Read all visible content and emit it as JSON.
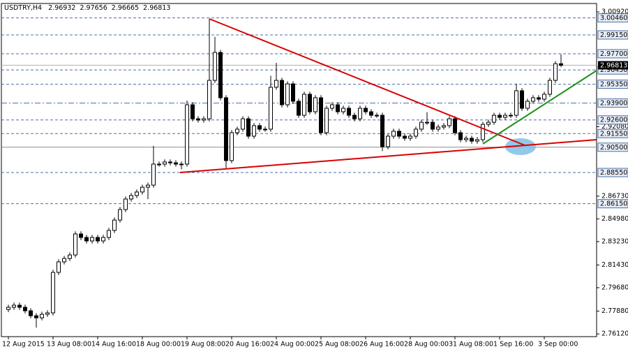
{
  "chart_data": {
    "type": "candlestick",
    "title": "USDTRY,H4",
    "bull_color": "#ffffff",
    "bear_color": "#000000",
    "level_color": "#4a6fa5",
    "categories": [
      "12 Aug 2015",
      null,
      null,
      null,
      null,
      null,
      null,
      null,
      "13 Aug 08:00",
      null,
      null,
      null,
      null,
      null,
      null,
      null,
      "14 Aug 16:00",
      null,
      null,
      null,
      null,
      null,
      null,
      null,
      "18 Aug 00:00",
      null,
      null,
      null,
      null,
      null,
      null,
      null,
      "19 Aug 08:00",
      null,
      null,
      null,
      null,
      null,
      null,
      null,
      "20 Aug 16:00",
      null,
      null,
      null,
      null,
      null,
      null,
      null,
      "24 Aug 00:00",
      null,
      null,
      null,
      null,
      null,
      null,
      null,
      "25 Aug 08:00",
      null,
      null,
      null,
      null,
      null,
      null,
      null,
      "26 Aug 16:00",
      null,
      null,
      null,
      null,
      null,
      null,
      null,
      "28 Aug 00:00",
      null,
      null,
      null,
      null,
      null,
      null,
      null,
      "31 Aug 08:00",
      null,
      null,
      null,
      null,
      null,
      null,
      null,
      "1 Sep 16:00",
      null,
      null,
      null,
      null,
      null,
      null,
      null,
      "3 Sep 00:00",
      null,
      null,
      null
    ],
    "open": [
      2.78,
      2.7817,
      2.7833,
      2.7817,
      2.779,
      2.7752,
      2.7736,
      2.7763,
      2.7774,
      2.8086,
      2.8167,
      2.8193,
      2.822,
      2.8382,
      2.8355,
      2.8328,
      2.8355,
      2.8328,
      2.8355,
      2.8409,
      2.8489,
      2.857,
      2.8651,
      2.8678,
      2.8705,
      2.8742,
      2.8758,
      2.892,
      2.892,
      2.8936,
      2.893,
      2.892,
      2.892,
      2.9377,
      2.9269,
      2.9259,
      2.9269,
      2.9565,
      2.978,
      2.9431,
      2.8947,
      2.9162,
      2.9189,
      2.9269,
      2.9135,
      2.9216,
      2.9189,
      2.9189,
      2.9512,
      2.9565,
      2.9377,
      2.9538,
      2.9404,
      2.9296,
      2.9458,
      2.9323,
      2.9431,
      2.9162,
      2.935,
      2.9377,
      2.9323,
      2.935,
      2.9296,
      2.9269,
      2.935,
      2.9323,
      2.9296,
      2.9296,
      2.9054,
      2.9135,
      2.9173,
      2.9135,
      2.9119,
      2.9135,
      2.9189,
      2.9242,
      2.9242,
      2.9189,
      2.9205,
      2.9216,
      2.9269,
      2.9162,
      2.9108,
      2.9119,
      2.9097,
      2.9108,
      2.9226,
      2.9242,
      2.9296,
      2.928,
      2.9296,
      2.9296,
      2.9485,
      2.935,
      2.9404,
      2.9431,
      2.942,
      2.9458,
      2.9565,
      2.96932
    ],
    "high": [
      2.7837,
      2.7853,
      2.7853,
      2.7837,
      2.781,
      2.7772,
      2.7783,
      2.7794,
      2.8106,
      2.8187,
      2.8213,
      2.824,
      2.8402,
      2.8402,
      2.8375,
      2.8375,
      2.8375,
      2.8375,
      2.8429,
      2.8509,
      2.859,
      2.8671,
      2.8698,
      2.8725,
      2.8762,
      2.8778,
      2.906,
      2.894,
      2.8956,
      2.8956,
      2.895,
      2.894,
      2.941,
      2.9397,
      2.9289,
      2.9289,
      3.004,
      2.99,
      2.98,
      2.9451,
      2.9182,
      2.9209,
      2.9289,
      2.9289,
      2.9236,
      2.9236,
      2.9209,
      2.96,
      2.97,
      2.9585,
      2.9558,
      2.9558,
      2.9424,
      2.9478,
      2.9478,
      2.9451,
      2.9451,
      2.937,
      2.9397,
      2.9397,
      2.937,
      2.937,
      2.9316,
      2.937,
      2.937,
      2.9343,
      2.9316,
      2.9316,
      2.9155,
      2.9193,
      2.9193,
      2.9155,
      2.9155,
      2.9209,
      2.9262,
      2.932,
      2.9262,
      2.9225,
      2.9236,
      2.9289,
      2.9289,
      2.9182,
      2.9139,
      2.9139,
      2.9128,
      2.9246,
      2.9262,
      2.9316,
      2.9316,
      2.9316,
      2.9316,
      2.954,
      2.9505,
      2.9424,
      2.9451,
      2.9451,
      2.9478,
      2.9585,
      2.9713,
      2.97656
    ],
    "low": [
      2.778,
      2.7797,
      2.7797,
      2.777,
      2.7732,
      2.766,
      2.7716,
      2.7743,
      2.7754,
      2.8066,
      2.8147,
      2.8173,
      2.82,
      2.8335,
      2.8308,
      2.8308,
      2.8308,
      2.8308,
      2.8335,
      2.8389,
      2.8469,
      2.855,
      2.8631,
      2.8658,
      2.8685,
      2.865,
      2.8738,
      2.89,
      2.89,
      2.891,
      2.89,
      2.888,
      2.89,
      2.9249,
      2.9239,
      2.9239,
      2.9249,
      2.9545,
      2.9411,
      2.888,
      2.8927,
      2.9142,
      2.9169,
      2.9115,
      2.9115,
      2.9169,
      2.9169,
      2.9169,
      2.9492,
      2.9357,
      2.9357,
      2.9384,
      2.9276,
      2.9276,
      2.9303,
      2.9303,
      2.9142,
      2.9142,
      2.933,
      2.9303,
      2.9303,
      2.9276,
      2.9249,
      2.9249,
      2.9303,
      2.9276,
      2.9276,
      2.902,
      2.9034,
      2.9115,
      2.9115,
      2.9099,
      2.9099,
      2.9115,
      2.9169,
      2.9222,
      2.9169,
      2.9169,
      2.9185,
      2.9196,
      2.9142,
      2.9088,
      2.9088,
      2.9077,
      2.9077,
      2.9088,
      2.9206,
      2.9222,
      2.926,
      2.926,
      2.9276,
      2.9276,
      2.933,
      2.933,
      2.9384,
      2.94,
      2.94,
      2.9438,
      2.9545,
      2.96665
    ],
    "close": [
      2.7817,
      2.7833,
      2.7817,
      2.779,
      2.7752,
      2.7736,
      2.7763,
      2.7774,
      2.8086,
      2.8167,
      2.8193,
      2.822,
      2.8382,
      2.8355,
      2.8328,
      2.8355,
      2.8328,
      2.8355,
      2.8409,
      2.8489,
      2.857,
      2.8651,
      2.8678,
      2.8705,
      2.8742,
      2.8758,
      2.892,
      2.892,
      2.8936,
      2.893,
      2.892,
      2.892,
      2.9377,
      2.9269,
      2.9259,
      2.9269,
      2.9565,
      2.978,
      2.9431,
      2.8947,
      2.9162,
      2.9189,
      2.9269,
      2.9135,
      2.9216,
      2.9189,
      2.9189,
      2.9512,
      2.9565,
      2.9377,
      2.9538,
      2.9404,
      2.9296,
      2.9458,
      2.9323,
      2.9431,
      2.9162,
      2.935,
      2.9377,
      2.9323,
      2.935,
      2.9296,
      2.9269,
      2.935,
      2.9323,
      2.9296,
      2.9296,
      2.9054,
      2.9135,
      2.9173,
      2.9135,
      2.9119,
      2.9135,
      2.9189,
      2.9242,
      2.9242,
      2.9189,
      2.9205,
      2.9216,
      2.9269,
      2.9162,
      2.9108,
      2.9119,
      2.9097,
      2.9108,
      2.9226,
      2.9242,
      2.9296,
      2.928,
      2.9296,
      2.9296,
      2.9485,
      2.935,
      2.9404,
      2.9431,
      2.942,
      2.9458,
      2.9565,
      2.96932,
      2.96813
    ],
    "ylim": [
      2.7591,
      3.0157
    ],
    "yticks": [
      {
        "value": 2.7612,
        "label": "2.76120"
      },
      {
        "value": 2.7788,
        "label": "2.77880"
      },
      {
        "value": 2.7968,
        "label": "2.79680"
      },
      {
        "value": 2.8143,
        "label": "2.81430"
      },
      {
        "value": 2.8323,
        "label": "2.83230"
      },
      {
        "value": 2.8498,
        "label": "2.84980"
      },
      {
        "value": 2.8673,
        "label": "2.86730"
      },
      {
        "value": 2.9208,
        "label": "2.92080"
      },
      {
        "value": 3.0092,
        "label": "3.00920"
      }
    ],
    "levels": [
      {
        "value": 3.0046,
        "label": "3.00460",
        "style": "dash"
      },
      {
        "value": 2.9915,
        "label": "2.99150",
        "style": "dash"
      },
      {
        "value": 2.977,
        "label": "2.97700",
        "style": "dash"
      },
      {
        "value": 2.9645,
        "label": "2.96450",
        "style": "dash"
      },
      {
        "value": 2.9535,
        "label": "2.95350",
        "style": "dash"
      },
      {
        "value": 2.939,
        "label": "2.93900",
        "style": "dashdot"
      },
      {
        "value": 2.926,
        "label": "2.92600",
        "style": "dash"
      },
      {
        "value": 2.9155,
        "label": "2.91550",
        "style": "dash"
      },
      {
        "value": 2.905,
        "label": "2.90500",
        "style": "solid"
      },
      {
        "value": 2.8855,
        "label": "2.88550",
        "style": "dash"
      },
      {
        "value": 2.8615,
        "label": "2.86150",
        "style": "dash"
      }
    ]
  }
}
